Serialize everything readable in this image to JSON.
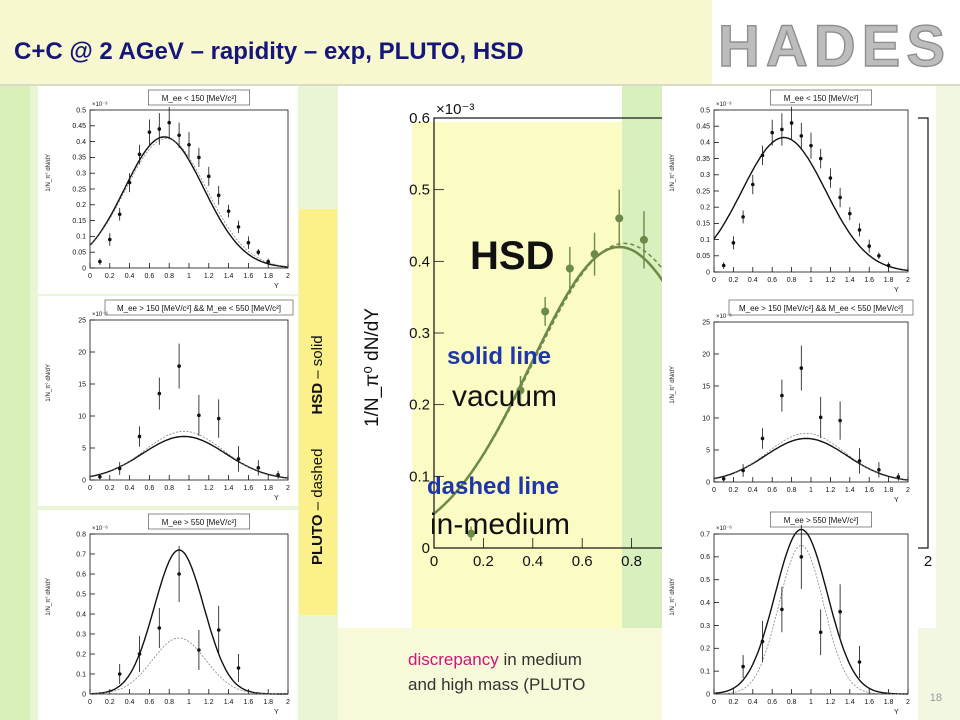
{
  "slide": {
    "title": "C+C @ 2 AGeV – rapidity – exp, PLUTO, HSD",
    "logo_text": "HADES",
    "page_number": "18",
    "legend_vertical_pluto": "PLUTO",
    "legend_vertical_pluto_style": " – dashed",
    "legend_vertical_hsd": "HSD",
    "legend_vertical_hsd_style": " – solid",
    "hsd_label": "HSD",
    "solid_line_label": "solid line",
    "vacuum_label": "vacuum",
    "dashed_line_label": "dashed line",
    "inmedium_label": "in-medium",
    "discrepancy_word": "discrepancy",
    "discrepancy_rest": " in medium",
    "discrepancy_line2": "and high mass (PLUTO",
    "colors": {
      "title": "#16167a",
      "accent_magenta": "#c8177a",
      "accent_blue": "#1f36a8",
      "data_green": "#6b8a4a"
    }
  },
  "chart_data": [
    {
      "id": "left-top",
      "type": "line",
      "title": "M_ee < 150 [MeV/c²]",
      "ylabel": "1/N_π° dN/dY",
      "xlabel": "Y",
      "exponent": "×10⁻³",
      "xlim": [
        0,
        2
      ],
      "ylim": [
        0,
        0.5
      ],
      "xticks": [
        0,
        0.2,
        0.4,
        0.6,
        0.8,
        1,
        1.2,
        1.4,
        1.6,
        1.8,
        2
      ],
      "yticks": [
        0,
        0.05,
        0.1,
        0.15,
        0.2,
        0.25,
        0.3,
        0.35,
        0.4,
        0.45,
        0.5
      ],
      "ytick_labels": [
        "0",
        "0.05",
        "0.1",
        "0.15",
        "0.2",
        "0.25",
        "0.3",
        "0.35",
        "0.4",
        "0.45",
        "0.5"
      ],
      "xtick_labels": [
        "0",
        "0.2",
        "0.4",
        "0.6",
        "0.8",
        "1",
        "1.2",
        "1.4",
        "1.6",
        "1.8",
        "2"
      ],
      "points": {
        "x": [
          0.1,
          0.2,
          0.3,
          0.4,
          0.5,
          0.6,
          0.7,
          0.8,
          0.9,
          1.0,
          1.1,
          1.2,
          1.3,
          1.4,
          1.5,
          1.6,
          1.7,
          1.8
        ],
        "y": [
          0.02,
          0.09,
          0.17,
          0.27,
          0.36,
          0.43,
          0.44,
          0.46,
          0.42,
          0.39,
          0.35,
          0.29,
          0.23,
          0.18,
          0.13,
          0.08,
          0.05,
          0.02
        ],
        "err": [
          0.01,
          0.02,
          0.02,
          0.03,
          0.03,
          0.04,
          0.05,
          0.05,
          0.04,
          0.04,
          0.03,
          0.03,
          0.03,
          0.02,
          0.02,
          0.02,
          0.01,
          0.01
        ]
      },
      "series": [
        {
          "style": "solid",
          "mu": 0.75,
          "sigma": 0.4,
          "amp": 0.415
        },
        {
          "style": "dashed",
          "mu": 0.77,
          "sigma": 0.41,
          "amp": 0.41
        }
      ]
    },
    {
      "id": "left-mid",
      "type": "line",
      "title": "M_ee > 150 [MeV/c²] && M_ee < 550 [MeV/c²]",
      "ylabel": "1/N_π° dN/dY",
      "xlabel": "Y",
      "exponent": "×10⁻⁶",
      "xlim": [
        0,
        2
      ],
      "ylim": [
        0,
        25
      ],
      "xticks": [
        0,
        0.2,
        0.4,
        0.6,
        0.8,
        1,
        1.2,
        1.4,
        1.6,
        1.8,
        2
      ],
      "xtick_labels": [
        "0",
        "0.2",
        "0.4",
        "0.6",
        "0.8",
        "1",
        "1.2",
        "1.4",
        "1.6",
        "1.8",
        "2"
      ],
      "yticks": [
        0,
        5,
        10,
        15,
        20,
        25
      ],
      "ytick_labels": [
        "0",
        "5",
        "10",
        "15",
        "20",
        "25"
      ],
      "points": {
        "x": [
          0.1,
          0.3,
          0.5,
          0.7,
          0.9,
          1.1,
          1.3,
          1.5,
          1.7,
          1.9
        ],
        "y": [
          0.5,
          1.8,
          6.8,
          13.5,
          17.8,
          10.1,
          9.6,
          3.3,
          1.9,
          0.8
        ],
        "err": [
          0.4,
          1.0,
          1.6,
          2.5,
          3.5,
          3.2,
          3.0,
          2.0,
          1.2,
          0.6
        ]
      },
      "series": [
        {
          "style": "solid",
          "mu": 0.95,
          "sigma": 0.42,
          "amp": 6.8
        },
        {
          "style": "dashed",
          "mu": 0.95,
          "sigma": 0.4,
          "amp": 7.6
        }
      ]
    },
    {
      "id": "left-bottom",
      "type": "line",
      "title": "M_ee > 550 [MeV/c²]",
      "ylabel": "1/N_π° dN/dY",
      "xlabel": "Y",
      "exponent": "×10⁻⁶",
      "xlim": [
        0,
        2
      ],
      "ylim": [
        0,
        0.8
      ],
      "xticks": [
        0,
        0.2,
        0.4,
        0.6,
        0.8,
        1,
        1.2,
        1.4,
        1.6,
        1.8,
        2
      ],
      "xtick_labels": [
        "0",
        "0.2",
        "0.4",
        "0.6",
        "0.8",
        "1",
        "1.2",
        "1.4",
        "1.6",
        "1.8",
        "2"
      ],
      "yticks": [
        0,
        0.1,
        0.2,
        0.3,
        0.4,
        0.5,
        0.6,
        0.7,
        0.8
      ],
      "ytick_labels": [
        "0",
        "0.1",
        "0.2",
        "0.3",
        "0.4",
        "0.5",
        "0.6",
        "0.7",
        "0.8"
      ],
      "points": {
        "x": [
          0.3,
          0.5,
          0.7,
          0.9,
          1.1,
          1.3,
          1.5
        ],
        "y": [
          0.1,
          0.2,
          0.33,
          0.6,
          0.22,
          0.32,
          0.13
        ],
        "err": [
          0.05,
          0.09,
          0.1,
          0.14,
          0.1,
          0.12,
          0.07
        ]
      },
      "series": [
        {
          "style": "solid",
          "mu": 0.9,
          "sigma": 0.25,
          "amp": 0.72
        },
        {
          "style": "dashed",
          "mu": 0.9,
          "sigma": 0.27,
          "amp": 0.28
        }
      ]
    },
    {
      "id": "center-large",
      "type": "line",
      "title": "",
      "ylabel": "1/N_π⁰ dN/dY",
      "xlabel": "",
      "exponent": "×10⁻³",
      "xlim": [
        0,
        2
      ],
      "ylim": [
        0,
        0.6
      ],
      "xticks": [
        0,
        0.2,
        0.4,
        0.6,
        0.8,
        2
      ],
      "xtick_labels": [
        "0",
        "0.2",
        "0.4",
        "0.6",
        "0.8",
        "2"
      ],
      "yticks": [
        0,
        0.1,
        0.2,
        0.3,
        0.4,
        0.5,
        0.6
      ],
      "ytick_labels": [
        "0",
        "0.1",
        "0.2",
        "0.3",
        "0.4",
        "0.5",
        "0.6"
      ],
      "points": {
        "x": [
          0.15,
          0.35,
          0.45,
          0.55,
          0.65,
          0.75,
          0.85
        ],
        "y": [
          0.02,
          0.22,
          0.33,
          0.39,
          0.41,
          0.46,
          0.43
        ],
        "err": [
          0.01,
          0.02,
          0.02,
          0.03,
          0.03,
          0.04,
          0.04
        ]
      },
      "series": [
        {
          "style": "solid",
          "mu": 0.75,
          "sigma": 0.36,
          "amp": 0.42
        },
        {
          "style": "dashed",
          "mu": 0.77,
          "sigma": 0.37,
          "amp": 0.425
        }
      ]
    },
    {
      "id": "right-top",
      "type": "line",
      "title": "M_ee < 150 [MeV/c²]",
      "ylabel": "1/N_π° dN/dY",
      "xlabel": "Y",
      "exponent": "×10⁻³",
      "xlim": [
        0,
        2
      ],
      "ylim": [
        0,
        0.5
      ],
      "xticks": [
        0,
        0.2,
        0.4,
        0.6,
        0.8,
        1,
        1.2,
        1.4,
        1.6,
        1.8,
        2
      ],
      "xtick_labels": [
        "0",
        "0.2",
        "0.4",
        "0.6",
        "0.8",
        "1",
        "1.2",
        "1.4",
        "1.6",
        "1.8",
        "2"
      ],
      "yticks": [
        0,
        0.05,
        0.1,
        0.15,
        0.2,
        0.25,
        0.3,
        0.35,
        0.4,
        0.45,
        0.5
      ],
      "ytick_labels": [
        "0",
        "0.05",
        "0.1",
        "0.15",
        "0.2",
        "0.25",
        "0.3",
        "0.35",
        "0.4",
        "0.45",
        "0.5"
      ],
      "points": {
        "x": [
          0.1,
          0.2,
          0.3,
          0.4,
          0.5,
          0.6,
          0.7,
          0.8,
          0.9,
          1.0,
          1.1,
          1.2,
          1.3,
          1.4,
          1.5,
          1.6,
          1.7,
          1.8
        ],
        "y": [
          0.02,
          0.09,
          0.17,
          0.27,
          0.36,
          0.43,
          0.44,
          0.46,
          0.42,
          0.39,
          0.35,
          0.29,
          0.23,
          0.18,
          0.13,
          0.08,
          0.05,
          0.02
        ],
        "err": [
          0.01,
          0.02,
          0.02,
          0.03,
          0.03,
          0.04,
          0.05,
          0.05,
          0.04,
          0.04,
          0.03,
          0.03,
          0.03,
          0.02,
          0.02,
          0.02,
          0.01,
          0.01
        ]
      },
      "series": [
        {
          "style": "solid",
          "mu": 0.72,
          "sigma": 0.43,
          "amp": 0.415
        }
      ]
    },
    {
      "id": "right-mid",
      "type": "line",
      "title": "M_ee > 150 [MeV/c²] && M_ee < 550 [MeV/c²]",
      "ylabel": "1/N_π° dN/dY",
      "xlabel": "Y",
      "exponent": "×10⁻⁶",
      "xlim": [
        0,
        2
      ],
      "ylim": [
        0,
        25
      ],
      "xticks": [
        0,
        0.2,
        0.4,
        0.6,
        0.8,
        1,
        1.2,
        1.4,
        1.6,
        1.8,
        2
      ],
      "xtick_labels": [
        "0",
        "0.2",
        "0.4",
        "0.6",
        "0.8",
        "1",
        "1.2",
        "1.4",
        "1.6",
        "1.8",
        "2"
      ],
      "yticks": [
        0,
        5,
        10,
        15,
        20,
        25
      ],
      "ytick_labels": [
        "0",
        "5",
        "10",
        "15",
        "20",
        "25"
      ],
      "points": {
        "x": [
          0.1,
          0.3,
          0.5,
          0.7,
          0.9,
          1.1,
          1.3,
          1.5,
          1.7,
          1.9
        ],
        "y": [
          0.5,
          1.8,
          6.8,
          13.5,
          17.8,
          10.1,
          9.6,
          3.3,
          1.9,
          0.8
        ],
        "err": [
          0.4,
          1.0,
          1.6,
          2.5,
          3.5,
          3.2,
          3.0,
          2.0,
          1.2,
          0.6
        ]
      },
      "series": [
        {
          "style": "solid",
          "mu": 0.95,
          "sigma": 0.42,
          "amp": 6.8
        },
        {
          "style": "dashed",
          "mu": 0.95,
          "sigma": 0.4,
          "amp": 7.6
        }
      ]
    },
    {
      "id": "right-bottom",
      "type": "line",
      "title": "M_ee > 550 [MeV/c²]",
      "ylabel": "1/N_π° dN/dY",
      "xlabel": "Y",
      "exponent": "×10⁻⁶",
      "xlim": [
        0,
        2
      ],
      "ylim": [
        0,
        0.7
      ],
      "xticks": [
        0,
        0.2,
        0.4,
        0.6,
        0.8,
        1,
        1.2,
        1.4,
        1.6,
        1.8,
        2
      ],
      "xtick_labels": [
        "0",
        "0.2",
        "0.4",
        "0.6",
        "0.8",
        "1",
        "1.2",
        "1.4",
        "1.6",
        "1.8",
        "2"
      ],
      "yticks": [
        0,
        0.1,
        0.2,
        0.3,
        0.4,
        0.5,
        0.6,
        0.7
      ],
      "ytick_labels": [
        "0",
        "0.1",
        "0.2",
        "0.3",
        "0.4",
        "0.5",
        "0.6",
        "0.7"
      ],
      "points": {
        "x": [
          0.3,
          0.5,
          0.7,
          0.9,
          1.1,
          1.3,
          1.5
        ],
        "y": [
          0.12,
          0.23,
          0.37,
          0.6,
          0.27,
          0.36,
          0.14
        ],
        "err": [
          0.05,
          0.09,
          0.1,
          0.14,
          0.1,
          0.12,
          0.07
        ]
      },
      "series": [
        {
          "style": "solid",
          "mu": 0.9,
          "sigma": 0.27,
          "amp": 0.72
        },
        {
          "style": "dashed",
          "mu": 0.9,
          "sigma": 0.23,
          "amp": 0.65
        }
      ]
    }
  ]
}
